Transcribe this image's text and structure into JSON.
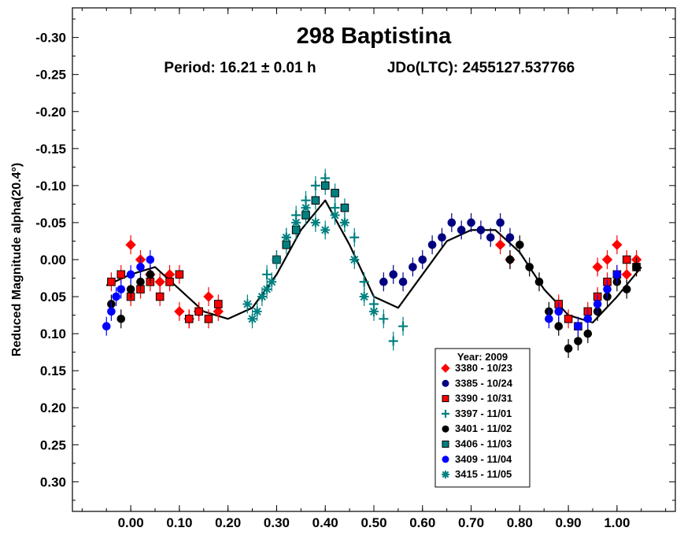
{
  "chart_data": {
    "type": "scatter",
    "title": "298 Baptistina",
    "subtitle_period": "Period: 16.21 ± 0.01 h",
    "subtitle_epoch": "JDo(LTC): 2455127.537766",
    "ylabel": "Reduced Magnitude alpha(20.4°)",
    "xlabel": "",
    "xlim": [
      -0.12,
      1.12
    ],
    "ylim": [
      0.34,
      -0.34
    ],
    "x_ticks": [
      0.0,
      0.1,
      0.2,
      0.3,
      0.4,
      0.5,
      0.6,
      0.7,
      0.8,
      0.9,
      1.0
    ],
    "x_tick_labels": [
      "0.00",
      "0.10",
      "0.20",
      "0.30",
      "0.40",
      "0.50",
      "0.60",
      "0.70",
      "0.80",
      "0.90",
      "1.00"
    ],
    "y_ticks": [
      -0.3,
      -0.25,
      -0.2,
      -0.15,
      -0.1,
      -0.05,
      0.0,
      0.05,
      0.1,
      0.15,
      0.2,
      0.25,
      0.3
    ],
    "y_tick_labels": [
      "-0.30",
      "-0.25",
      "-0.20",
      "-0.15",
      "-0.10",
      "-0.05",
      "0.00",
      "0.05",
      "0.10",
      "0.15",
      "0.20",
      "0.25",
      "0.30"
    ],
    "legend_title": "Year: 2009",
    "legend_position": "bottom-center",
    "fit_curve": {
      "x": [
        -0.05,
        0.0,
        0.05,
        0.1,
        0.15,
        0.2,
        0.25,
        0.3,
        0.35,
        0.4,
        0.45,
        0.5,
        0.55,
        0.6,
        0.65,
        0.7,
        0.75,
        0.8,
        0.85,
        0.9,
        0.95,
        1.0,
        1.05
      ],
      "y": [
        0.035,
        0.02,
        0.01,
        0.04,
        0.07,
        0.08,
        0.065,
        0.02,
        -0.04,
        -0.08,
        -0.02,
        0.05,
        0.065,
        0.02,
        -0.025,
        -0.04,
        -0.04,
        -0.01,
        0.04,
        0.075,
        0.085,
        0.05,
        0.01
      ]
    },
    "series": [
      {
        "name": "3380 - 10/23",
        "marker": "diamond",
        "color": "#ff0000",
        "x": [
          0.0,
          0.02,
          0.04,
          0.06,
          0.08,
          0.1,
          0.12,
          0.14,
          0.16,
          0.18,
          0.76,
          0.78,
          0.96,
          0.98,
          1.0,
          1.02,
          1.04
        ],
        "y": [
          -0.02,
          0.0,
          0.02,
          0.03,
          0.02,
          0.07,
          0.08,
          0.07,
          0.05,
          0.07,
          -0.02,
          0.0,
          0.01,
          0.0,
          -0.02,
          0.02,
          0.0
        ]
      },
      {
        "name": "3385 - 10/24",
        "marker": "circle",
        "color": "#000080",
        "x": [
          0.52,
          0.54,
          0.56,
          0.58,
          0.6,
          0.62,
          0.64,
          0.66,
          0.68,
          0.7,
          0.72,
          0.74,
          0.76,
          0.78
        ],
        "y": [
          0.03,
          0.02,
          0.03,
          0.01,
          0.0,
          -0.02,
          -0.03,
          -0.05,
          -0.04,
          -0.05,
          -0.04,
          -0.03,
          -0.05,
          -0.03
        ]
      },
      {
        "name": "3390 - 10/31",
        "marker": "square",
        "color": "#ff0000",
        "x": [
          -0.04,
          -0.02,
          0.0,
          0.02,
          0.04,
          0.06,
          0.08,
          0.1,
          0.12,
          0.14,
          0.16,
          0.18,
          0.88,
          0.9,
          0.92,
          0.94,
          0.96,
          0.98,
          1.0,
          1.02,
          1.04
        ],
        "y": [
          0.03,
          0.02,
          0.05,
          0.04,
          0.03,
          0.05,
          0.03,
          0.02,
          0.08,
          0.07,
          0.08,
          0.06,
          0.06,
          0.08,
          0.09,
          0.07,
          0.05,
          0.03,
          0.02,
          0.0,
          0.01
        ]
      },
      {
        "name": "3397 - 11/01",
        "marker": "plus",
        "color": "#008080",
        "x": [
          0.28,
          0.3,
          0.32,
          0.34,
          0.36,
          0.38,
          0.4,
          0.42,
          0.44,
          0.46,
          0.48,
          0.5,
          0.52,
          0.54,
          0.56
        ],
        "y": [
          0.02,
          0.0,
          -0.03,
          -0.06,
          -0.08,
          -0.1,
          -0.11,
          -0.07,
          -0.05,
          -0.03,
          0.03,
          0.06,
          0.08,
          0.11,
          0.09
        ]
      },
      {
        "name": "3401 - 11/02",
        "marker": "circle",
        "color": "#000000",
        "x": [
          -0.04,
          -0.02,
          0.0,
          0.02,
          0.04,
          0.78,
          0.8,
          0.82,
          0.84,
          0.86,
          0.88,
          0.9,
          0.92,
          0.94,
          0.96,
          0.98,
          1.0,
          1.02,
          1.04
        ],
        "y": [
          0.06,
          0.08,
          0.04,
          0.03,
          0.02,
          0.0,
          -0.02,
          0.01,
          0.03,
          0.07,
          0.09,
          0.12,
          0.11,
          0.1,
          0.07,
          0.05,
          0.03,
          0.04,
          0.01
        ]
      },
      {
        "name": "3406 - 11/03",
        "marker": "square",
        "color": "#008080",
        "x": [
          0.3,
          0.32,
          0.34,
          0.36,
          0.38,
          0.4,
          0.42,
          0.44
        ],
        "y": [
          0.0,
          -0.02,
          -0.04,
          -0.06,
          -0.08,
          -0.1,
          -0.09,
          -0.07
        ]
      },
      {
        "name": "3409 - 11/04",
        "marker": "circle",
        "color": "#0000ff",
        "x": [
          -0.05,
          -0.04,
          -0.03,
          -0.02,
          0.0,
          0.02,
          0.04,
          0.86,
          0.88,
          0.92,
          0.94,
          0.96,
          0.98,
          1.0
        ],
        "y": [
          0.09,
          0.07,
          0.05,
          0.04,
          0.02,
          0.01,
          0.0,
          0.08,
          0.07,
          0.09,
          0.08,
          0.06,
          0.04,
          0.02
        ]
      },
      {
        "name": "3415 - 11/05",
        "marker": "asterisk",
        "color": "#008080",
        "x": [
          0.24,
          0.25,
          0.26,
          0.27,
          0.28,
          0.29,
          0.3,
          0.32,
          0.34,
          0.36,
          0.38,
          0.4,
          0.42,
          0.44,
          0.46,
          0.48,
          0.5
        ],
        "y": [
          0.06,
          0.08,
          0.07,
          0.05,
          0.04,
          0.03,
          0.0,
          -0.03,
          -0.05,
          -0.07,
          -0.05,
          -0.04,
          -0.06,
          -0.05,
          0.0,
          0.05,
          0.07
        ]
      }
    ]
  }
}
